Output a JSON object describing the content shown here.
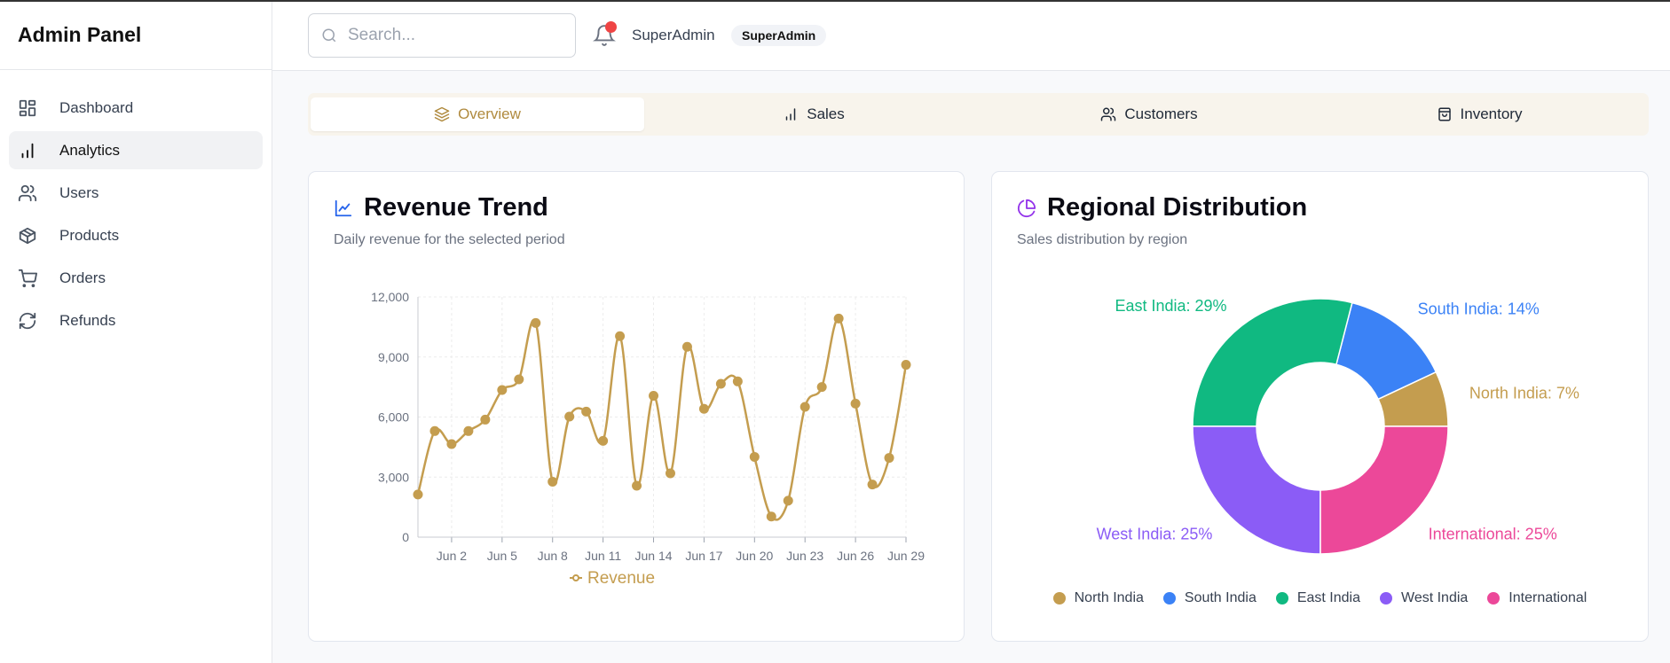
{
  "sidebar": {
    "title": "Admin Panel",
    "items": [
      {
        "label": "Dashboard",
        "icon": "layout-grid-icon"
      },
      {
        "label": "Analytics",
        "icon": "bar-chart-icon",
        "active": true
      },
      {
        "label": "Users",
        "icon": "users-icon"
      },
      {
        "label": "Products",
        "icon": "package-icon"
      },
      {
        "label": "Orders",
        "icon": "shopping-cart-icon"
      },
      {
        "label": "Refunds",
        "icon": "refresh-icon"
      }
    ]
  },
  "header": {
    "search_placeholder": "Search...",
    "search_value": "",
    "notification_icon": "bell-icon",
    "user_name": "SuperAdmin",
    "role_badge": "SuperAdmin"
  },
  "tabs": [
    {
      "label": "Overview",
      "icon": "layers-icon",
      "active": true
    },
    {
      "label": "Sales",
      "icon": "bar-chart-icon"
    },
    {
      "label": "Customers",
      "icon": "users-icon"
    },
    {
      "label": "Inventory",
      "icon": "shopping-bag-icon"
    }
  ],
  "colors": {
    "accent": "#c49d4f",
    "active_tab_text": "#b08a3e",
    "tab_bar_bg": "#f8f4ec"
  },
  "revenue_card": {
    "title": "Revenue Trend",
    "subtitle": "Daily revenue for the selected period",
    "icon": "trending-line-icon"
  },
  "region_card": {
    "title": "Regional Distribution",
    "subtitle": "Sales distribution by region",
    "icon": "pie-chart-icon"
  },
  "chart_data": [
    {
      "type": "line",
      "x_ticks": [
        "Jun 2",
        "Jun 5",
        "Jun 8",
        "Jun 11",
        "Jun 14",
        "Jun 17",
        "Jun 20",
        "Jun 23",
        "Jun 26",
        "Jun 29"
      ],
      "x_tick_indices": [
        2,
        5,
        8,
        11,
        14,
        17,
        20,
        23,
        26,
        29
      ],
      "y_ticks": [
        "0",
        "3,000",
        "6,000",
        "9,000",
        "12,000"
      ],
      "ylim": [
        0,
        12000
      ],
      "grid": true,
      "legend": "bottom",
      "series": [
        {
          "name": "Revenue",
          "color": "#c49d4f",
          "values": [
            2130,
            5300,
            4650,
            5300,
            5870,
            7350,
            7880,
            10700,
            2770,
            6020,
            6270,
            4810,
            10040,
            2570,
            7060,
            3190,
            9510,
            6410,
            7660,
            7780,
            4010,
            1030,
            1820,
            6510,
            7500,
            10920,
            6670,
            2630,
            3960,
            8610
          ]
        }
      ]
    },
    {
      "type": "pie",
      "donut": true,
      "legend": "bottom",
      "slices": [
        {
          "name": "North India",
          "value": 7,
          "label": "North India: 7%",
          "color": "#c49d4f"
        },
        {
          "name": "South India",
          "value": 14,
          "label": "South India: 14%",
          "color": "#3b82f6"
        },
        {
          "name": "East India",
          "value": 29,
          "label": "East India: 29%",
          "color": "#10b981"
        },
        {
          "name": "West India",
          "value": 25,
          "label": "West India: 25%",
          "color": "#8b5cf6"
        },
        {
          "name": "International",
          "value": 25,
          "label": "International: 25%",
          "color": "#ec4899"
        }
      ]
    }
  ]
}
